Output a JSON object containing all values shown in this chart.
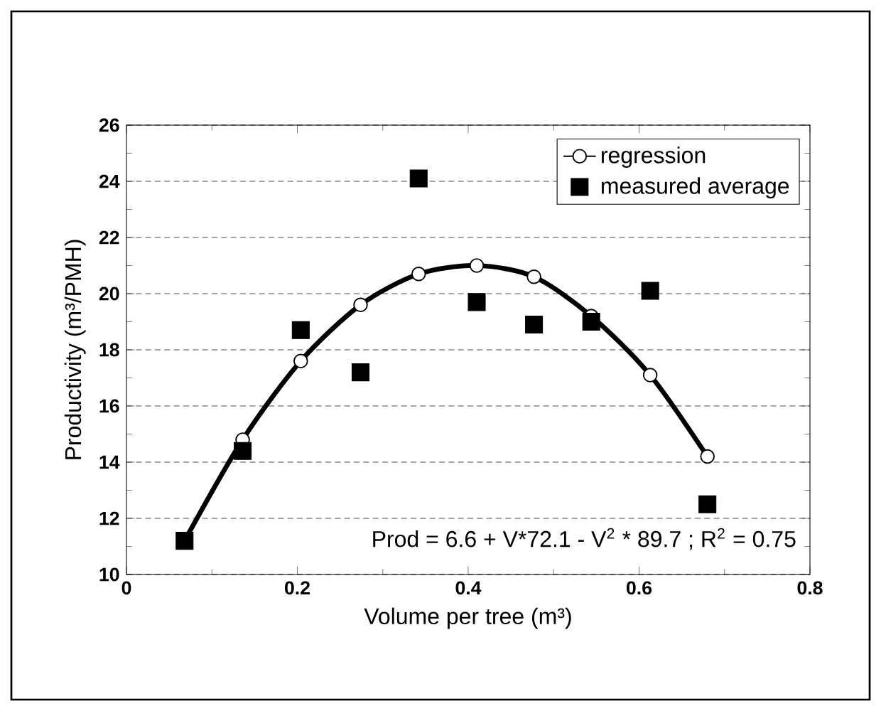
{
  "chart_data": {
    "type": "scatter",
    "xlabel": "Volume per tree (m³)",
    "ylabel": "Productivity (m³/PMH)",
    "xlim": [
      0,
      0.8
    ],
    "xticks": [
      0,
      0.2,
      0.4,
      0.6,
      0.8
    ],
    "ylim": [
      10,
      26
    ],
    "yticks": [
      10,
      12,
      14,
      16,
      18,
      20,
      22,
      24,
      26
    ],
    "grid": "y",
    "legend": "top right",
    "annotations": [
      "Prod = 6.6 + V*72.1 - V$^{2}$ * 89.7 ; R$^{2}$ = 0.75"
    ],
    "series": [
      {
        "name": "regression",
        "type": "line",
        "marker": "circle",
        "color": "#000000",
        "x": [
          0.068,
          0.136,
          0.204,
          0.274,
          0.342,
          0.41,
          0.477,
          0.544,
          0.613,
          0.68
        ],
        "values": [
          11.2,
          14.8,
          17.6,
          19.6,
          20.7,
          21.0,
          20.6,
          19.2,
          17.1,
          14.2
        ]
      },
      {
        "name": "measured average",
        "marker": "square",
        "color": "#000000",
        "x": [
          0.068,
          0.136,
          0.204,
          0.274,
          0.342,
          0.41,
          0.477,
          0.544,
          0.613,
          0.68
        ],
        "values": [
          11.2,
          14.4,
          18.7,
          17.2,
          24.1,
          19.7,
          18.9,
          19.0,
          20.1,
          12.5
        ]
      }
    ]
  }
}
